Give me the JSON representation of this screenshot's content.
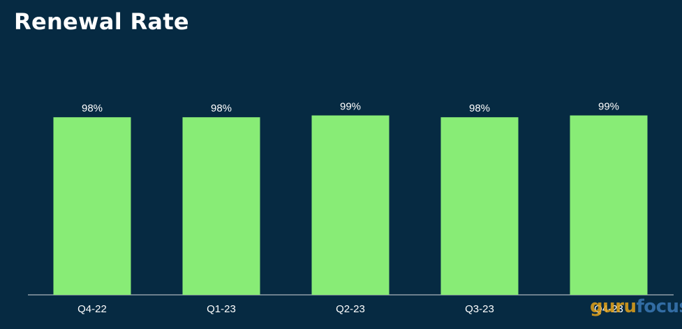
{
  "chart_data": {
    "type": "bar",
    "title": "Renewal Rate",
    "categories": [
      "Q4-22",
      "Q1-23",
      "Q2-23",
      "Q3-23",
      "Q4-23"
    ],
    "values": [
      98,
      98,
      99,
      98,
      99
    ],
    "value_labels": [
      "98%",
      "98%",
      "99%",
      "98%",
      "99%"
    ],
    "xlabel": "",
    "ylabel": "",
    "grid": false,
    "legend": "none",
    "bar_color": "#88ec76",
    "background_color": "#062a42",
    "text_color": "#ffffff",
    "axis_color": "#a9b4bc"
  },
  "watermark": {
    "part1": "guru",
    "part2": "focus"
  }
}
